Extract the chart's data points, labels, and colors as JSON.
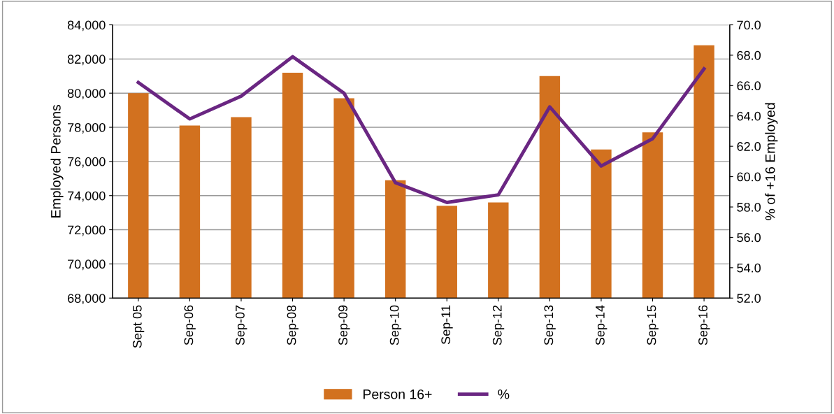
{
  "chart_data": {
    "type": "bar",
    "ylabel": "Employed Persons",
    "y2label": "% of +16 Employed",
    "categories": [
      "Sept 05",
      "Sep-06",
      "Sep-07",
      "Sep-08",
      "Sep-09",
      "Sep-10",
      "Sep-11",
      "Sep-12",
      "Sep-13",
      "Sep-14",
      "Sep-15",
      "Sep-16"
    ],
    "series": [
      {
        "name": "Person 16+",
        "color": "#d2711f",
        "values": [
          80000,
          78100,
          78600,
          81200,
          79700,
          74900,
          73400,
          73600,
          81000,
          76700,
          77700,
          82800
        ]
      },
      {
        "name": "%",
        "type": "line",
        "axis": "y2",
        "color": "#6a2682",
        "values": [
          66.2,
          63.8,
          65.3,
          67.9,
          65.5,
          59.6,
          58.3,
          58.8,
          64.6,
          60.7,
          62.5,
          67.1
        ]
      }
    ],
    "ylim": [
      68000,
      84000
    ],
    "yticks": [
      {
        "value": 68000,
        "label": "68,000"
      },
      {
        "value": 70000,
        "label": "70,000"
      },
      {
        "value": 72000,
        "label": "72,000"
      },
      {
        "value": 74000,
        "label": "74,000"
      },
      {
        "value": 76000,
        "label": "76,000"
      },
      {
        "value": 78000,
        "label": "78,000"
      },
      {
        "value": 80000,
        "label": "80,000"
      },
      {
        "value": 82000,
        "label": "82,000"
      },
      {
        "value": 84000,
        "label": "84,000"
      }
    ],
    "y2lim": [
      52,
      70
    ],
    "y2ticks": [
      {
        "value": 52,
        "label": "52.0"
      },
      {
        "value": 54,
        "label": "54.0"
      },
      {
        "value": 56,
        "label": "56.0"
      },
      {
        "value": 58,
        "label": "58.0"
      },
      {
        "value": 60,
        "label": "60.0"
      },
      {
        "value": 62,
        "label": "62.0"
      },
      {
        "value": 64,
        "label": "64.0"
      },
      {
        "value": 66,
        "label": "66.0"
      },
      {
        "value": 68,
        "label": "68.0"
      },
      {
        "value": 70,
        "label": "70.0"
      }
    ],
    "grid": "y",
    "legend": "bottom",
    "marker": "none",
    "line_style": "solid"
  }
}
